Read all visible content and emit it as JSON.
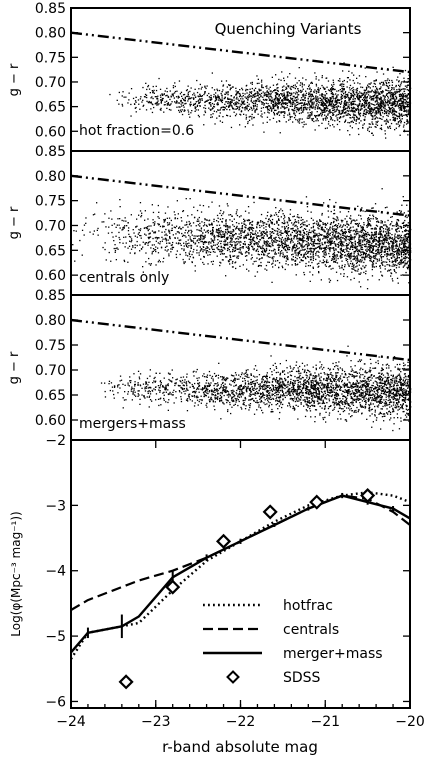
{
  "chart_data": [
    {
      "type": "scatter",
      "title": "Quenching Variants",
      "annotation": "hot fraction=0.6",
      "xlabel": "",
      "ylabel": "g − r",
      "xlim": [
        -24,
        -20
      ],
      "ylim": [
        0.56,
        0.85
      ],
      "yticks": [
        0.6,
        0.65,
        0.7,
        0.75,
        0.8,
        0.85
      ],
      "ytick_labels": [
        "0.60",
        "0.65",
        "0.70",
        "0.75",
        "0.80",
        "0.85"
      ],
      "reference_line": {
        "style": "dash-dot-dot",
        "x": [
          -24,
          -20
        ],
        "y": [
          0.8,
          0.72
        ]
      },
      "points": {
        "n": 2600,
        "x_start": -23.6,
        "x_end": -20.0,
        "center_start": 0.667,
        "center_end": 0.657,
        "spread": 0.012,
        "spread_end": 0.026,
        "density": "rising toward bright end"
      }
    },
    {
      "type": "scatter",
      "annotation": "centrals only",
      "ylabel": "g − r",
      "xlim": [
        -24,
        -20
      ],
      "ylim": [
        0.56,
        0.85
      ],
      "yticks": [
        0.6,
        0.65,
        0.7,
        0.75,
        0.8,
        0.85
      ],
      "ytick_labels": [
        "0.60",
        "0.65",
        "0.70",
        "0.75",
        "0.80",
        "0.85"
      ],
      "reference_line": {
        "style": "dash-dot-dot",
        "x": [
          -24,
          -20
        ],
        "y": [
          0.8,
          0.72
        ]
      },
      "points": {
        "n": 3200,
        "x_start": -24.0,
        "x_end": -20.0,
        "center_start": 0.69,
        "center_end": 0.66,
        "spread": 0.024,
        "spread_end": 0.03,
        "density": "rising toward faint end"
      }
    },
    {
      "type": "scatter",
      "annotation": "mergers+mass",
      "ylabel": "g − r",
      "xlim": [
        -24,
        -20
      ],
      "ylim": [
        0.56,
        0.85
      ],
      "yticks": [
        0.6,
        0.65,
        0.7,
        0.75,
        0.8,
        0.85
      ],
      "ytick_labels": [
        "0.60",
        "0.65",
        "0.70",
        "0.75",
        "0.80",
        "0.85"
      ],
      "reference_line": {
        "style": "dash-dot-dot",
        "x": [
          -24,
          -20
        ],
        "y": [
          0.8,
          0.72
        ]
      },
      "points": {
        "n": 2700,
        "x_start": -23.7,
        "x_end": -20.0,
        "center_start": 0.665,
        "center_end": 0.658,
        "spread": 0.014,
        "spread_end": 0.026,
        "density": "rising toward faint end"
      }
    },
    {
      "type": "line",
      "xlabel": "r-band absolute mag",
      "ylabel": "Log(φ(Mpc⁻³ mag⁻¹))",
      "xlim": [
        -24,
        -20
      ],
      "ylim": [
        -6.1,
        -2.0
      ],
      "xticks": [
        -24,
        -23,
        -22,
        -21,
        -20
      ],
      "xtick_labels": [
        "−24",
        "−23",
        "−22",
        "−21",
        "−20"
      ],
      "yticks": [
        -6,
        -5,
        -4,
        -3,
        -2
      ],
      "ytick_labels": [
        "−6",
        "−5",
        "−4",
        "−3",
        "−2"
      ],
      "series": [
        {
          "name": "hotfrac",
          "style": "dotted",
          "x": [
            -24.0,
            -23.8,
            -23.4,
            -23.2,
            -22.8,
            -22.4,
            -22.0,
            -21.6,
            -21.2,
            -20.8,
            -20.5,
            -20.2,
            -20.0
          ],
          "y": [
            -5.35,
            -4.95,
            -4.85,
            -4.8,
            -4.3,
            -3.85,
            -3.55,
            -3.25,
            -3.0,
            -2.85,
            -2.8,
            -2.85,
            -2.95
          ]
        },
        {
          "name": "centrals",
          "style": "dashed",
          "x": [
            -24.0,
            -23.8,
            -23.5,
            -23.2,
            -22.8,
            -22.4,
            -22.0,
            -21.6,
            -21.2,
            -20.8,
            -20.5,
            -20.2,
            -20.0
          ],
          "y": [
            -4.6,
            -4.45,
            -4.3,
            -4.15,
            -4.0,
            -3.8,
            -3.55,
            -3.3,
            -3.05,
            -2.85,
            -2.9,
            -3.1,
            -3.3
          ]
        },
        {
          "name": "merger+mass",
          "style": "solid",
          "x": [
            -24.0,
            -23.8,
            -23.4,
            -23.2,
            -22.8,
            -22.4,
            -22.0,
            -21.6,
            -21.2,
            -20.8,
            -20.5,
            -20.2,
            -20.0
          ],
          "y": [
            -5.25,
            -4.95,
            -4.85,
            -4.7,
            -4.1,
            -3.8,
            -3.55,
            -3.3,
            -3.05,
            -2.85,
            -2.95,
            -3.05,
            -3.2
          ],
          "errors": [
            {
              "x": -23.8,
              "y": -4.95,
              "err": 0.08
            },
            {
              "x": -23.4,
              "y": -4.85,
              "err": 0.18
            },
            {
              "x": -22.8,
              "y": -4.1,
              "err": 0.1
            },
            {
              "x": -22.4,
              "y": -3.8,
              "err": 0.05
            },
            {
              "x": -22.0,
              "y": -3.55,
              "err": 0.04
            },
            {
              "x": -21.6,
              "y": -3.3,
              "err": 0.03
            },
            {
              "x": -21.2,
              "y": -3.05,
              "err": 0.03
            },
            {
              "x": -20.8,
              "y": -2.85,
              "err": 0.04
            },
            {
              "x": -20.5,
              "y": -2.95,
              "err": 0.04
            },
            {
              "x": -20.2,
              "y": -3.05,
              "err": 0.04
            }
          ]
        },
        {
          "name": "SDSS",
          "style": "diamond",
          "x": [
            -23.35,
            -22.8,
            -22.2,
            -21.65,
            -21.1,
            -20.5
          ],
          "y": [
            -5.7,
            -4.25,
            -3.55,
            -3.1,
            -2.95,
            -2.85
          ]
        }
      ],
      "legend_position": "bottom-right"
    }
  ]
}
